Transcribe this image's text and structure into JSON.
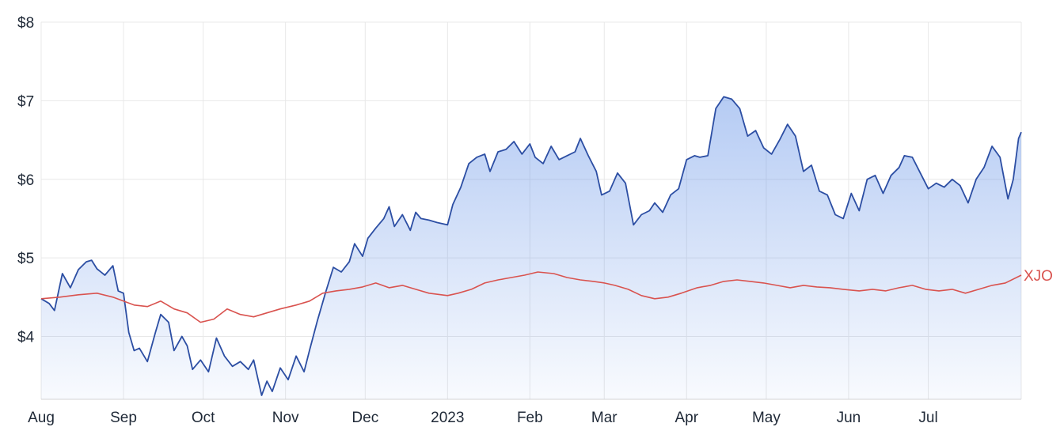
{
  "chart_data": {
    "type": "line",
    "colors": {
      "primary_line": "#2c4ea3",
      "primary_fill": "#5b8ce6",
      "benchmark_line": "#d9534f",
      "grid": "#e8e8e8",
      "text": "#1f2937"
    },
    "y_axis": {
      "min": 3.2,
      "max": 8,
      "ticks": [
        {
          "value": 8,
          "label": "$8"
        },
        {
          "value": 7,
          "label": "$7"
        },
        {
          "value": 6,
          "label": "$6"
        },
        {
          "value": 5,
          "label": "$5"
        },
        {
          "value": 4,
          "label": "$4"
        }
      ]
    },
    "x_axis": {
      "ticks": [
        {
          "date": "2022-08-01",
          "label": "Aug"
        },
        {
          "date": "2022-09-01",
          "label": "Sep"
        },
        {
          "date": "2022-10-01",
          "label": "Oct"
        },
        {
          "date": "2022-11-01",
          "label": "Nov"
        },
        {
          "date": "2022-12-01",
          "label": "Dec"
        },
        {
          "date": "2023-01-01",
          "label": "2023"
        },
        {
          "date": "2023-02-01",
          "label": "Feb"
        },
        {
          "date": "2023-03-01",
          "label": "Mar"
        },
        {
          "date": "2023-04-01",
          "label": "Apr"
        },
        {
          "date": "2023-05-01",
          "label": "May"
        },
        {
          "date": "2023-06-01",
          "label": "Jun"
        },
        {
          "date": "2023-07-01",
          "label": "Jul"
        }
      ]
    },
    "grid": true,
    "series": [
      {
        "label": "",
        "points": [
          [
            "2022-08-01",
            4.48
          ],
          [
            "2022-08-04",
            4.42
          ],
          [
            "2022-08-06",
            4.33
          ],
          [
            "2022-08-09",
            4.8
          ],
          [
            "2022-08-12",
            4.62
          ],
          [
            "2022-08-15",
            4.85
          ],
          [
            "2022-08-18",
            4.95
          ],
          [
            "2022-08-20",
            4.97
          ],
          [
            "2022-08-22",
            4.86
          ],
          [
            "2022-08-25",
            4.78
          ],
          [
            "2022-08-28",
            4.9
          ],
          [
            "2022-08-30",
            4.58
          ],
          [
            "2022-09-01",
            4.55
          ],
          [
            "2022-09-03",
            4.05
          ],
          [
            "2022-09-05",
            3.82
          ],
          [
            "2022-09-07",
            3.85
          ],
          [
            "2022-09-10",
            3.68
          ],
          [
            "2022-09-13",
            4.05
          ],
          [
            "2022-09-15",
            4.28
          ],
          [
            "2022-09-18",
            4.18
          ],
          [
            "2022-09-20",
            3.82
          ],
          [
            "2022-09-23",
            4.0
          ],
          [
            "2022-09-25",
            3.88
          ],
          [
            "2022-09-27",
            3.58
          ],
          [
            "2022-09-30",
            3.7
          ],
          [
            "2022-10-03",
            3.55
          ],
          [
            "2022-10-06",
            3.98
          ],
          [
            "2022-10-09",
            3.75
          ],
          [
            "2022-10-12",
            3.62
          ],
          [
            "2022-10-15",
            3.68
          ],
          [
            "2022-10-18",
            3.58
          ],
          [
            "2022-10-20",
            3.7
          ],
          [
            "2022-10-23",
            3.25
          ],
          [
            "2022-10-25",
            3.43
          ],
          [
            "2022-10-27",
            3.3
          ],
          [
            "2022-10-30",
            3.6
          ],
          [
            "2022-11-02",
            3.45
          ],
          [
            "2022-11-05",
            3.75
          ],
          [
            "2022-11-08",
            3.55
          ],
          [
            "2022-11-10",
            3.82
          ],
          [
            "2022-11-13",
            4.2
          ],
          [
            "2022-11-16",
            4.55
          ],
          [
            "2022-11-19",
            4.88
          ],
          [
            "2022-11-22",
            4.82
          ],
          [
            "2022-11-25",
            4.95
          ],
          [
            "2022-11-27",
            5.18
          ],
          [
            "2022-11-30",
            5.02
          ],
          [
            "2022-12-02",
            5.25
          ],
          [
            "2022-12-05",
            5.38
          ],
          [
            "2022-12-08",
            5.5
          ],
          [
            "2022-12-10",
            5.65
          ],
          [
            "2022-12-12",
            5.4
          ],
          [
            "2022-12-15",
            5.55
          ],
          [
            "2022-12-18",
            5.35
          ],
          [
            "2022-12-20",
            5.58
          ],
          [
            "2022-12-22",
            5.5
          ],
          [
            "2022-12-25",
            5.48
          ],
          [
            "2022-12-28",
            5.45
          ],
          [
            "2023-01-01",
            5.42
          ],
          [
            "2023-01-03",
            5.68
          ],
          [
            "2023-01-06",
            5.9
          ],
          [
            "2023-01-09",
            6.2
          ],
          [
            "2023-01-12",
            6.28
          ],
          [
            "2023-01-15",
            6.32
          ],
          [
            "2023-01-17",
            6.1
          ],
          [
            "2023-01-20",
            6.35
          ],
          [
            "2023-01-23",
            6.38
          ],
          [
            "2023-01-26",
            6.48
          ],
          [
            "2023-01-29",
            6.32
          ],
          [
            "2023-02-01",
            6.45
          ],
          [
            "2023-02-03",
            6.28
          ],
          [
            "2023-02-06",
            6.2
          ],
          [
            "2023-02-09",
            6.42
          ],
          [
            "2023-02-12",
            6.25
          ],
          [
            "2023-02-15",
            6.3
          ],
          [
            "2023-02-18",
            6.35
          ],
          [
            "2023-02-20",
            6.52
          ],
          [
            "2023-02-23",
            6.3
          ],
          [
            "2023-02-26",
            6.1
          ],
          [
            "2023-02-28",
            5.8
          ],
          [
            "2023-03-03",
            5.85
          ],
          [
            "2023-03-06",
            6.08
          ],
          [
            "2023-03-09",
            5.95
          ],
          [
            "2023-03-12",
            5.42
          ],
          [
            "2023-03-15",
            5.55
          ],
          [
            "2023-03-18",
            5.6
          ],
          [
            "2023-03-20",
            5.7
          ],
          [
            "2023-03-23",
            5.58
          ],
          [
            "2023-03-26",
            5.8
          ],
          [
            "2023-03-29",
            5.88
          ],
          [
            "2023-04-01",
            6.25
          ],
          [
            "2023-04-04",
            6.3
          ],
          [
            "2023-04-06",
            6.28
          ],
          [
            "2023-04-09",
            6.3
          ],
          [
            "2023-04-12",
            6.9
          ],
          [
            "2023-04-15",
            7.05
          ],
          [
            "2023-04-18",
            7.02
          ],
          [
            "2023-04-21",
            6.9
          ],
          [
            "2023-04-24",
            6.55
          ],
          [
            "2023-04-27",
            6.62
          ],
          [
            "2023-04-30",
            6.4
          ],
          [
            "2023-05-03",
            6.32
          ],
          [
            "2023-05-06",
            6.5
          ],
          [
            "2023-05-09",
            6.7
          ],
          [
            "2023-05-12",
            6.55
          ],
          [
            "2023-05-15",
            6.1
          ],
          [
            "2023-05-18",
            6.18
          ],
          [
            "2023-05-21",
            5.85
          ],
          [
            "2023-05-24",
            5.8
          ],
          [
            "2023-05-27",
            5.55
          ],
          [
            "2023-05-30",
            5.5
          ],
          [
            "2023-06-02",
            5.82
          ],
          [
            "2023-06-05",
            5.6
          ],
          [
            "2023-06-08",
            6.0
          ],
          [
            "2023-06-11",
            6.05
          ],
          [
            "2023-06-14",
            5.82
          ],
          [
            "2023-06-17",
            6.05
          ],
          [
            "2023-06-20",
            6.15
          ],
          [
            "2023-06-22",
            6.3
          ],
          [
            "2023-06-25",
            6.28
          ],
          [
            "2023-06-28",
            6.08
          ],
          [
            "2023-07-01",
            5.88
          ],
          [
            "2023-07-04",
            5.95
          ],
          [
            "2023-07-07",
            5.9
          ],
          [
            "2023-07-10",
            6.0
          ],
          [
            "2023-07-13",
            5.92
          ],
          [
            "2023-07-16",
            5.7
          ],
          [
            "2023-07-19",
            6.0
          ],
          [
            "2023-07-22",
            6.15
          ],
          [
            "2023-07-25",
            6.42
          ],
          [
            "2023-07-28",
            6.28
          ],
          [
            "2023-07-31",
            5.75
          ],
          [
            "2023-08-02",
            6.0
          ],
          [
            "2023-08-04",
            6.52
          ],
          [
            "2023-08-05",
            6.6
          ]
        ]
      },
      {
        "label": "XJO",
        "points": [
          [
            "2022-08-01",
            4.48
          ],
          [
            "2022-08-08",
            4.5
          ],
          [
            "2022-08-15",
            4.53
          ],
          [
            "2022-08-22",
            4.55
          ],
          [
            "2022-08-28",
            4.5
          ],
          [
            "2022-09-01",
            4.45
          ],
          [
            "2022-09-05",
            4.4
          ],
          [
            "2022-09-10",
            4.38
          ],
          [
            "2022-09-15",
            4.45
          ],
          [
            "2022-09-20",
            4.35
          ],
          [
            "2022-09-25",
            4.3
          ],
          [
            "2022-09-30",
            4.18
          ],
          [
            "2022-10-05",
            4.22
          ],
          [
            "2022-10-10",
            4.35
          ],
          [
            "2022-10-15",
            4.28
          ],
          [
            "2022-10-20",
            4.25
          ],
          [
            "2022-10-25",
            4.3
          ],
          [
            "2022-10-30",
            4.35
          ],
          [
            "2022-11-05",
            4.4
          ],
          [
            "2022-11-10",
            4.45
          ],
          [
            "2022-11-15",
            4.55
          ],
          [
            "2022-11-20",
            4.58
          ],
          [
            "2022-11-25",
            4.6
          ],
          [
            "2022-11-30",
            4.63
          ],
          [
            "2022-12-05",
            4.68
          ],
          [
            "2022-12-10",
            4.62
          ],
          [
            "2022-12-15",
            4.65
          ],
          [
            "2022-12-20",
            4.6
          ],
          [
            "2022-12-25",
            4.55
          ],
          [
            "2023-01-01",
            4.52
          ],
          [
            "2023-01-05",
            4.55
          ],
          [
            "2023-01-10",
            4.6
          ],
          [
            "2023-01-15",
            4.68
          ],
          [
            "2023-01-20",
            4.72
          ],
          [
            "2023-01-25",
            4.75
          ],
          [
            "2023-01-30",
            4.78
          ],
          [
            "2023-02-04",
            4.82
          ],
          [
            "2023-02-10",
            4.8
          ],
          [
            "2023-02-15",
            4.75
          ],
          [
            "2023-02-20",
            4.72
          ],
          [
            "2023-02-25",
            4.7
          ],
          [
            "2023-03-01",
            4.68
          ],
          [
            "2023-03-05",
            4.65
          ],
          [
            "2023-03-10",
            4.6
          ],
          [
            "2023-03-15",
            4.52
          ],
          [
            "2023-03-20",
            4.48
          ],
          [
            "2023-03-25",
            4.5
          ],
          [
            "2023-03-30",
            4.55
          ],
          [
            "2023-04-05",
            4.62
          ],
          [
            "2023-04-10",
            4.65
          ],
          [
            "2023-04-15",
            4.7
          ],
          [
            "2023-04-20",
            4.72
          ],
          [
            "2023-04-25",
            4.7
          ],
          [
            "2023-04-30",
            4.68
          ],
          [
            "2023-05-05",
            4.65
          ],
          [
            "2023-05-10",
            4.62
          ],
          [
            "2023-05-15",
            4.65
          ],
          [
            "2023-05-20",
            4.63
          ],
          [
            "2023-05-25",
            4.62
          ],
          [
            "2023-05-30",
            4.6
          ],
          [
            "2023-06-05",
            4.58
          ],
          [
            "2023-06-10",
            4.6
          ],
          [
            "2023-06-15",
            4.58
          ],
          [
            "2023-06-20",
            4.62
          ],
          [
            "2023-06-25",
            4.65
          ],
          [
            "2023-06-30",
            4.6
          ],
          [
            "2023-07-05",
            4.58
          ],
          [
            "2023-07-10",
            4.6
          ],
          [
            "2023-07-15",
            4.55
          ],
          [
            "2023-07-20",
            4.6
          ],
          [
            "2023-07-25",
            4.65
          ],
          [
            "2023-07-30",
            4.68
          ],
          [
            "2023-08-05",
            4.78
          ]
        ]
      }
    ]
  }
}
